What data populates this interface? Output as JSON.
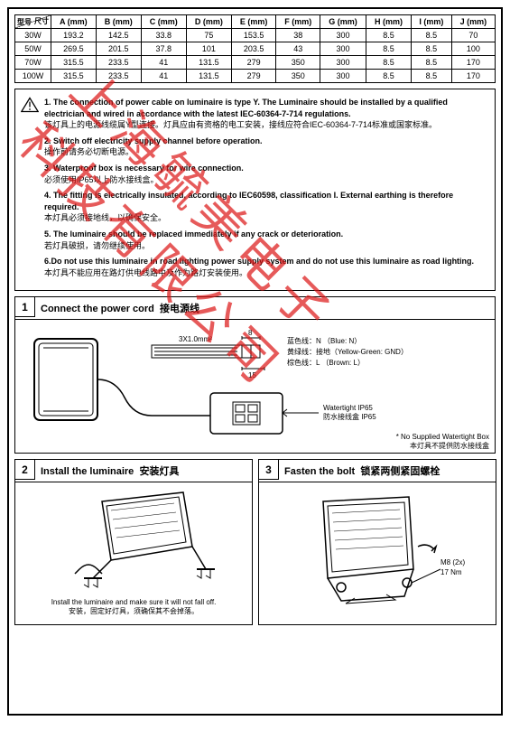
{
  "watermark": "上海毓美电子科技有限公司",
  "table": {
    "hdr_top": "尺寸",
    "hdr_bot": "型号",
    "columns": [
      "A (mm)",
      "B (mm)",
      "C (mm)",
      "D (mm)",
      "E (mm)",
      "F (mm)",
      "G (mm)",
      "H (mm)",
      "I (mm)",
      "J (mm)"
    ],
    "rows": [
      {
        "model": "30W",
        "vals": [
          "193.2",
          "142.5",
          "33.8",
          "75",
          "153.5",
          "38",
          "300",
          "8.5",
          "8.5",
          "70"
        ]
      },
      {
        "model": "50W",
        "vals": [
          "269.5",
          "201.5",
          "37.8",
          "101",
          "203.5",
          "43",
          "300",
          "8.5",
          "8.5",
          "100"
        ]
      },
      {
        "model": "70W",
        "vals": [
          "315.5",
          "233.5",
          "41",
          "131.5",
          "279",
          "350",
          "300",
          "8.5",
          "8.5",
          "170"
        ]
      },
      {
        "model": "100W",
        "vals": [
          "315.5",
          "233.5",
          "41",
          "131.5",
          "279",
          "350",
          "300",
          "8.5",
          "8.5",
          "170"
        ]
      }
    ]
  },
  "warnings": {
    "w1_en": "1. The connection of power cable on luminaire is type Y. The Luminaire should be installed by a qualified electrician and wired in accordance with the latest IEC-60364-7-714 regulations.",
    "w1_cn": "该灯具上的电源线缆属Y型连接。灯具应由有资格的电工安装，接线应符合IEC-60364-7-714标准或国家标准。",
    "w2_en": "2. Switch off electricity supply channel before operation.",
    "w2_cn": "操作前请务必切断电源。",
    "w3_en": "3. Waterproof box is necessary for wire connection.",
    "w3_cn": "必须使用IP65以上防水接线盒。",
    "w4_en": "4. The fitting is electrically insulated, according to IEC60598, classification I. External earthing is therefore required.",
    "w4_cn": "本灯具必须接地线，以确保安全。",
    "w5_en": "5. The luminaire should be replaced immediately if any crack or deterioration.",
    "w5_cn": "若灯具破损，请勿继续使用。",
    "w6_en": "6.Do not use this luminaire in road lighting power supply system and do not use this luminaire as road lighting.",
    "w6_cn": "本灯具不能应用在路灯供电线路中及作为路灯安装使用。"
  },
  "step1": {
    "num": "1",
    "title_en": "Connect the power cord",
    "title_cn": "接电源线",
    "cable": "3X1.0mm²",
    "dim1": "8",
    "dim2": "15",
    "wire_blue": "蓝色线：N    （Blue: N）",
    "wire_yellow": "黄绿线：接地（Yellow-Green: GND）",
    "wire_brown": "棕色线：L   （Brown: L）",
    "box_en": "Watertight IP65",
    "box_cn": "防水接线盒 IP65",
    "note_en": "* No Supplied Watertight Box",
    "note_cn": "本灯具不提供防水接线盒"
  },
  "step2": {
    "num": "2",
    "title_en": "Install the luminaire",
    "title_cn": "安装灯具",
    "note_en": "Install the luminaire and make sure it will not fall off.",
    "note_cn": "安装，固定好灯具，须确保其不会掉落。"
  },
  "step3": {
    "num": "3",
    "title_en": "Fasten the bolt",
    "title_cn": "锁紧两侧紧固螺栓",
    "bolt": "M8 (2x)",
    "torque": "17 Nm"
  }
}
